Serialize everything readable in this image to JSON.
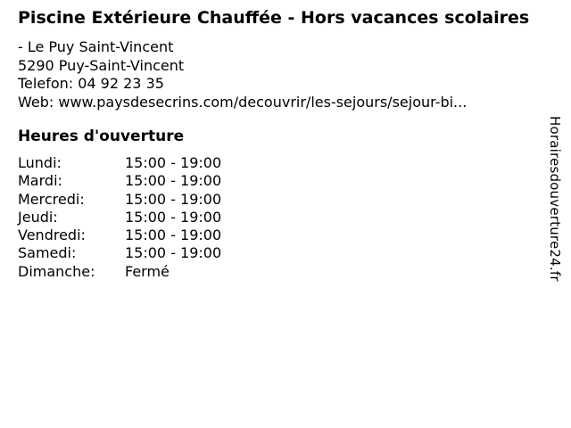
{
  "business": {
    "title": "Piscine Extérieure Chauffée - Hors vacances scolaires",
    "location_line": "- Le Puy Saint-Vincent",
    "address_line": "5290 Puy-Saint-Vincent",
    "phone_line": "Telefon: 04 92 23 35",
    "web_line": "Web: www.paysdesecrins.com/decouvrir/les-sejours/sejour-bi..."
  },
  "hours_section": {
    "heading": "Heures d'ouverture",
    "rows": [
      {
        "day": "Lundi:",
        "time": "15:00 - 19:00"
      },
      {
        "day": "Mardi:",
        "time": "15:00 - 19:00"
      },
      {
        "day": "Mercredi:",
        "time": "15:00 - 19:00"
      },
      {
        "day": "Jeudi:",
        "time": "15:00 - 19:00"
      },
      {
        "day": "Vendredi:",
        "time": "15:00 - 19:00"
      },
      {
        "day": "Samedi:",
        "time": "15:00 - 19:00"
      },
      {
        "day": "Dimanche:",
        "time": "Fermé"
      }
    ]
  },
  "watermark": {
    "text": "Horairesdouverture24.fr"
  },
  "colors": {
    "background": "#ffffff",
    "text": "#000000"
  }
}
